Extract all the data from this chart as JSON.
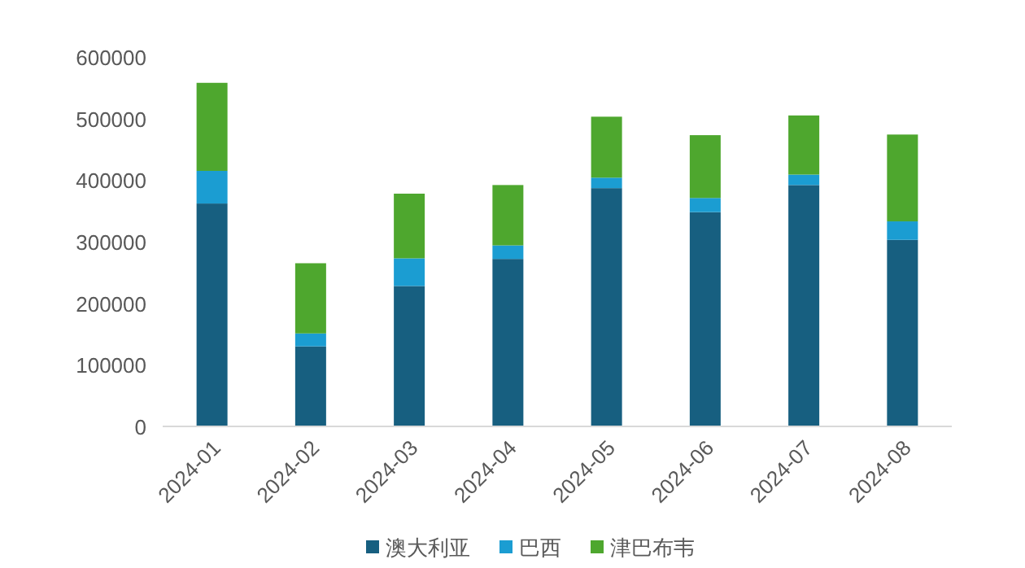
{
  "chart_data": {
    "type": "bar",
    "stacked": true,
    "categories": [
      "2024-01",
      "2024-02",
      "2024-03",
      "2024-04",
      "2024-05",
      "2024-06",
      "2024-07",
      "2024-08"
    ],
    "series": [
      {
        "name": "澳大利亚",
        "color": "#175f80",
        "values": [
          362000,
          130000,
          228000,
          272000,
          387000,
          348000,
          392000,
          303000
        ]
      },
      {
        "name": "巴西",
        "color": "#1b9dd2",
        "values": [
          53000,
          21000,
          45000,
          22000,
          17000,
          23000,
          17000,
          30000
        ]
      },
      {
        "name": "津巴布韦",
        "color": "#4ea72e",
        "values": [
          143000,
          114000,
          105000,
          98000,
          99000,
          102000,
          96000,
          141000
        ]
      }
    ],
    "ylim": [
      0,
      600000
    ],
    "yticks": [
      0,
      100000,
      200000,
      300000,
      400000,
      500000,
      600000
    ],
    "grid": false,
    "legend": "bottom"
  }
}
